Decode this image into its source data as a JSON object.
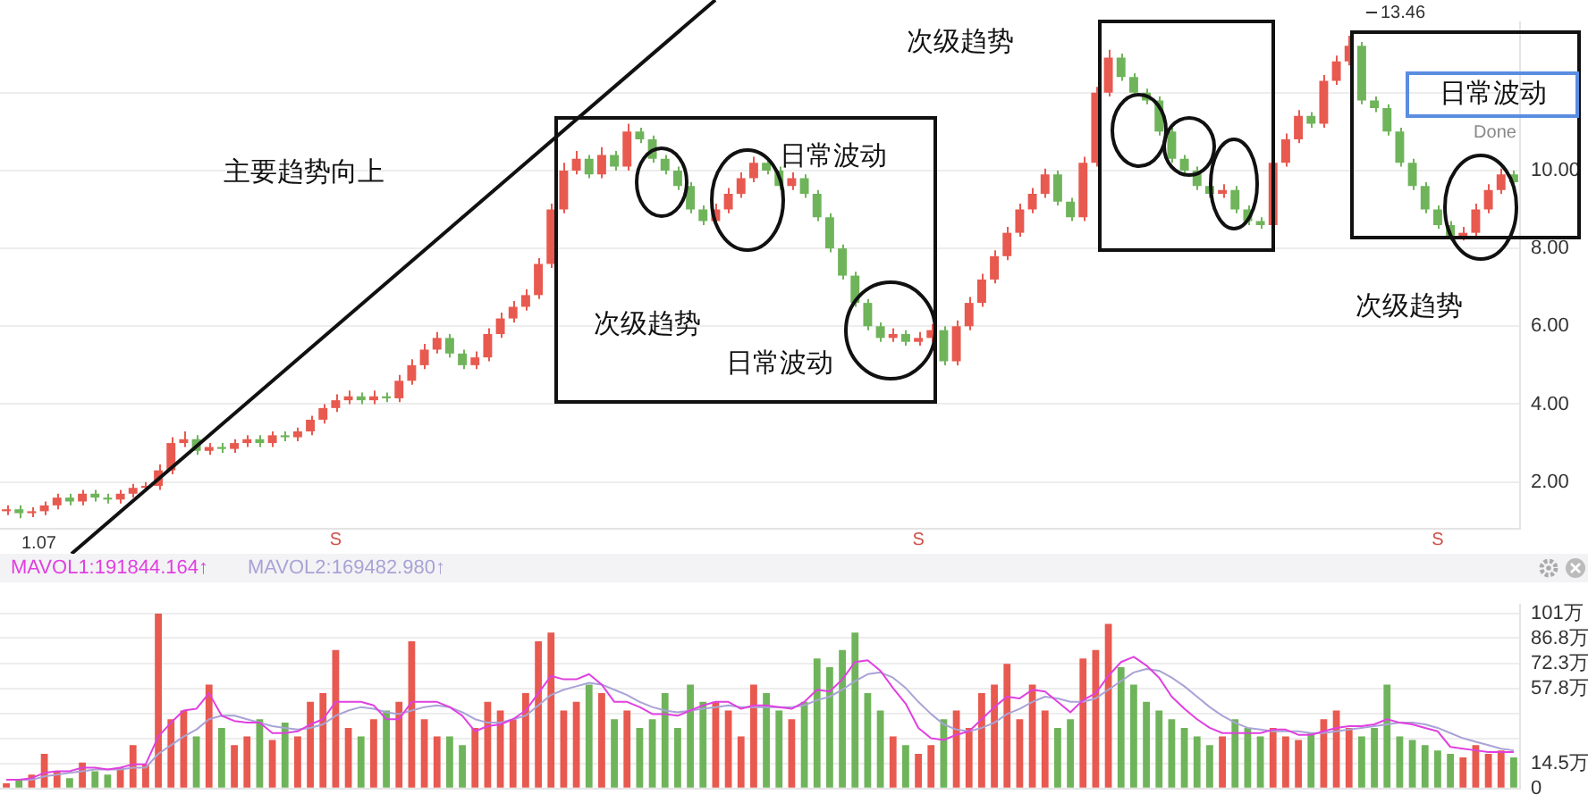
{
  "chart_data": [
    {
      "type": "candlestick",
      "categories": [
        null,
        null,
        null,
        null,
        null,
        null,
        null,
        null,
        null,
        null,
        null,
        null,
        null,
        null,
        null,
        null,
        null,
        null,
        null,
        null,
        null,
        null,
        null,
        null,
        null,
        null,
        "S",
        null,
        null,
        null,
        null,
        null,
        null,
        null,
        null,
        null,
        null,
        null,
        null,
        null,
        null,
        null,
        null,
        null,
        null,
        null,
        null,
        null,
        null,
        null,
        null,
        null,
        null,
        null,
        null,
        null,
        null,
        null,
        null,
        null,
        null,
        null,
        null,
        null,
        null,
        null,
        null,
        null,
        null,
        null,
        null,
        null,
        "S",
        null,
        null,
        null,
        null,
        null,
        null,
        null,
        null,
        null,
        null,
        null,
        null,
        null,
        null,
        null,
        null,
        null,
        null,
        null,
        null,
        null,
        null,
        null,
        null,
        null,
        null,
        null,
        null,
        null,
        null,
        null,
        null,
        null,
        null,
        null,
        null,
        null,
        null,
        null,
        null,
        "S",
        null,
        null,
        null,
        null,
        null,
        null
      ],
      "ohlc": [
        [
          1.25,
          1.4,
          1.15,
          1.3
        ],
        [
          1.3,
          1.4,
          1.07,
          1.2
        ],
        [
          1.2,
          1.35,
          1.1,
          1.25
        ],
        [
          1.25,
          1.5,
          1.15,
          1.4
        ],
        [
          1.4,
          1.7,
          1.3,
          1.6
        ],
        [
          1.6,
          1.7,
          1.4,
          1.5
        ],
        [
          1.5,
          1.8,
          1.4,
          1.7
        ],
        [
          1.7,
          1.8,
          1.5,
          1.6
        ],
        [
          1.6,
          1.7,
          1.45,
          1.55
        ],
        [
          1.55,
          1.8,
          1.45,
          1.7
        ],
        [
          1.7,
          1.95,
          1.6,
          1.85
        ],
        [
          1.85,
          2.0,
          1.75,
          1.9
        ],
        [
          1.9,
          2.45,
          1.8,
          2.3
        ],
        [
          2.3,
          3.15,
          2.2,
          3.0
        ],
        [
          3.0,
          3.3,
          2.9,
          3.1
        ],
        [
          3.1,
          3.2,
          2.7,
          2.8
        ],
        [
          2.8,
          3.0,
          2.7,
          2.9
        ],
        [
          2.9,
          3.0,
          2.75,
          2.85
        ],
        [
          2.85,
          3.1,
          2.75,
          3.0
        ],
        [
          3.0,
          3.2,
          2.9,
          3.1
        ],
        [
          3.1,
          3.2,
          2.9,
          3.0
        ],
        [
          3.0,
          3.3,
          2.9,
          3.2
        ],
        [
          3.2,
          3.3,
          3.05,
          3.15
        ],
        [
          3.15,
          3.4,
          3.05,
          3.3
        ],
        [
          3.3,
          3.7,
          3.2,
          3.6
        ],
        [
          3.6,
          4.0,
          3.5,
          3.9
        ],
        [
          3.9,
          4.25,
          3.8,
          4.1
        ],
        [
          4.1,
          4.35,
          4.0,
          4.2
        ],
        [
          4.2,
          4.3,
          4.0,
          4.1
        ],
        [
          4.1,
          4.35,
          4.0,
          4.2
        ],
        [
          4.2,
          4.3,
          4.05,
          4.15
        ],
        [
          4.15,
          4.75,
          4.05,
          4.6
        ],
        [
          4.6,
          5.15,
          4.5,
          5.0
        ],
        [
          5.0,
          5.55,
          4.9,
          5.4
        ],
        [
          5.4,
          5.85,
          5.3,
          5.7
        ],
        [
          5.7,
          5.8,
          5.2,
          5.3
        ],
        [
          5.3,
          5.4,
          4.9,
          5.0
        ],
        [
          5.0,
          5.35,
          4.9,
          5.2
        ],
        [
          5.2,
          5.95,
          5.1,
          5.8
        ],
        [
          5.8,
          6.35,
          5.7,
          6.2
        ],
        [
          6.2,
          6.65,
          6.1,
          6.5
        ],
        [
          6.5,
          6.95,
          6.4,
          6.8
        ],
        [
          6.8,
          7.75,
          6.7,
          7.6
        ],
        [
          7.6,
          9.15,
          7.5,
          9.0
        ],
        [
          9.0,
          10.2,
          8.9,
          10.0
        ],
        [
          10.0,
          10.5,
          9.9,
          10.3
        ],
        [
          10.3,
          10.4,
          9.8,
          9.9
        ],
        [
          9.9,
          10.6,
          9.8,
          10.4
        ],
        [
          10.4,
          10.5,
          10.0,
          10.1
        ],
        [
          10.1,
          11.2,
          10.0,
          11.0
        ],
        [
          11.0,
          11.1,
          10.7,
          10.8
        ],
        [
          10.8,
          10.9,
          10.2,
          10.3
        ],
        [
          10.3,
          10.4,
          9.9,
          10.0
        ],
        [
          10.0,
          10.1,
          9.5,
          9.6
        ],
        [
          9.6,
          9.7,
          8.9,
          9.0
        ],
        [
          9.0,
          9.1,
          8.6,
          8.7
        ],
        [
          8.7,
          9.15,
          8.6,
          9.0
        ],
        [
          9.0,
          9.55,
          8.9,
          9.4
        ],
        [
          9.4,
          9.95,
          9.3,
          9.8
        ],
        [
          9.8,
          10.35,
          9.7,
          10.2
        ],
        [
          10.2,
          10.3,
          9.9,
          10.0
        ],
        [
          10.0,
          10.1,
          9.5,
          9.6
        ],
        [
          9.6,
          9.95,
          9.5,
          9.8
        ],
        [
          9.8,
          9.9,
          9.3,
          9.4
        ],
        [
          9.4,
          9.5,
          8.7,
          8.8
        ],
        [
          8.8,
          8.9,
          7.9,
          8.0
        ],
        [
          8.0,
          8.1,
          7.2,
          7.3
        ],
        [
          7.3,
          7.4,
          6.5,
          6.6
        ],
        [
          6.6,
          6.7,
          5.9,
          6.0
        ],
        [
          6.0,
          6.1,
          5.6,
          5.7
        ],
        [
          5.7,
          5.95,
          5.6,
          5.8
        ],
        [
          5.8,
          5.9,
          5.5,
          5.6
        ],
        [
          5.6,
          5.85,
          5.5,
          5.7
        ],
        [
          5.7,
          6.05,
          5.6,
          5.9
        ],
        [
          5.9,
          6.0,
          5.0,
          5.1
        ],
        [
          5.1,
          6.15,
          5.0,
          6.0
        ],
        [
          6.0,
          6.75,
          5.9,
          6.6
        ],
        [
          6.6,
          7.35,
          6.5,
          7.2
        ],
        [
          7.2,
          7.95,
          7.1,
          7.8
        ],
        [
          7.8,
          8.55,
          7.7,
          8.4
        ],
        [
          8.4,
          9.15,
          8.3,
          9.0
        ],
        [
          9.0,
          9.55,
          8.9,
          9.4
        ],
        [
          9.4,
          10.05,
          9.3,
          9.9
        ],
        [
          9.9,
          10.0,
          9.1,
          9.2
        ],
        [
          9.2,
          9.3,
          8.7,
          8.8
        ],
        [
          8.8,
          10.35,
          8.7,
          10.2
        ],
        [
          10.2,
          12.15,
          10.1,
          12.0
        ],
        [
          12.0,
          13.1,
          11.9,
          12.9
        ],
        [
          12.9,
          13.0,
          12.3,
          12.4
        ],
        [
          12.4,
          12.5,
          11.9,
          12.0
        ],
        [
          12.0,
          12.1,
          11.7,
          11.8
        ],
        [
          11.8,
          11.9,
          10.9,
          11.0
        ],
        [
          11.0,
          11.1,
          10.2,
          10.3
        ],
        [
          10.3,
          10.4,
          9.9,
          10.0
        ],
        [
          10.0,
          10.1,
          9.5,
          9.6
        ],
        [
          9.6,
          9.7,
          9.3,
          9.4
        ],
        [
          9.4,
          9.65,
          9.3,
          9.5
        ],
        [
          9.5,
          9.6,
          8.9,
          9.0
        ],
        [
          9.0,
          9.1,
          8.6,
          8.7
        ],
        [
          8.7,
          8.8,
          8.5,
          8.6
        ],
        [
          8.6,
          10.35,
          8.5,
          10.2
        ],
        [
          10.2,
          10.95,
          10.1,
          10.8
        ],
        [
          10.8,
          11.55,
          10.7,
          11.4
        ],
        [
          11.4,
          11.5,
          11.1,
          11.2
        ],
        [
          11.2,
          12.45,
          11.1,
          12.3
        ],
        [
          12.3,
          12.95,
          12.2,
          12.8
        ],
        [
          12.8,
          13.46,
          12.7,
          13.2
        ],
        [
          13.2,
          13.3,
          11.7,
          11.8
        ],
        [
          11.8,
          11.9,
          11.5,
          11.6
        ],
        [
          11.6,
          11.7,
          10.9,
          11.0
        ],
        [
          11.0,
          11.1,
          10.1,
          10.2
        ],
        [
          10.2,
          10.3,
          9.5,
          9.6
        ],
        [
          9.6,
          9.7,
          8.9,
          9.0
        ],
        [
          9.0,
          9.1,
          8.5,
          8.6
        ],
        [
          8.6,
          8.7,
          8.2,
          8.3
        ],
        [
          8.3,
          8.55,
          8.2,
          8.4
        ],
        [
          8.4,
          9.15,
          8.3,
          9.0
        ],
        [
          9.0,
          9.65,
          8.9,
          9.5
        ],
        [
          9.5,
          10.05,
          9.4,
          9.9
        ],
        [
          9.9,
          10.0,
          9.6,
          9.7
        ]
      ],
      "ylim": [
        0.8,
        13.8
      ],
      "yticks": [
        {
          "value": 2,
          "label": "2.00"
        },
        {
          "value": 4,
          "label": "4.00"
        },
        {
          "value": 6,
          "label": "6.00"
        },
        {
          "value": 8,
          "label": "8.00"
        },
        {
          "value": 10,
          "label": "10.00"
        },
        {
          "value": 12,
          "label": null
        }
      ],
      "grid": "y",
      "annotations": [
        "主要趋势向上",
        "次级趋势",
        "日常波动",
        "日常波动",
        "次级趋势",
        "日常波动",
        "Done",
        "次级趋势",
        "13.46",
        "1.07"
      ]
    },
    {
      "type": "bar",
      "categories": [
        null,
        null,
        null,
        null,
        null,
        null,
        null,
        null,
        null,
        null,
        null,
        null,
        null,
        null,
        null,
        null,
        null,
        null,
        null,
        null,
        null,
        null,
        null,
        null,
        null,
        null,
        null,
        null,
        null,
        null,
        null,
        null,
        null,
        null,
        null,
        null,
        null,
        null,
        null,
        null,
        null,
        null,
        null,
        null,
        null,
        null,
        null,
        null,
        null,
        null,
        null,
        null,
        null,
        null,
        null,
        null,
        null,
        null,
        null,
        null,
        null,
        null,
        null,
        null,
        null,
        null,
        null,
        null,
        null,
        null,
        null,
        null,
        null,
        null,
        null,
        null,
        null,
        null,
        null,
        null,
        null,
        null,
        null,
        null,
        null,
        null,
        null,
        null,
        null,
        null,
        null,
        null,
        null,
        null,
        null,
        null,
        null,
        null,
        null,
        null,
        null,
        null,
        null,
        null,
        null,
        null,
        null,
        null,
        null,
        null,
        null,
        null,
        null,
        null,
        null,
        null,
        null,
        null,
        null,
        null
      ],
      "series": [
        {
          "type": "bar",
          "values": [
            3,
            5,
            8,
            20,
            10,
            6,
            15,
            10,
            8,
            12,
            25,
            14,
            101,
            40,
            45,
            30,
            60,
            35,
            25,
            30,
            40,
            28,
            38,
            30,
            50,
            55,
            80,
            35,
            30,
            40,
            45,
            50,
            85,
            40,
            30,
            30,
            25,
            35,
            50,
            45,
            40,
            55,
            85,
            90,
            45,
            50,
            60,
            55,
            40,
            45,
            35,
            40,
            55,
            35,
            60,
            50,
            50,
            45,
            30,
            60,
            55,
            45,
            40,
            50,
            75,
            70,
            80,
            90,
            55,
            45,
            30,
            25,
            20,
            25,
            40,
            45,
            35,
            55,
            60,
            72,
            40,
            60,
            45,
            35,
            40,
            75,
            80,
            95,
            70,
            60,
            50,
            45,
            40,
            35,
            30,
            25,
            30,
            40,
            35,
            30,
            35,
            30,
            28,
            32,
            40,
            45,
            35,
            30,
            35,
            60,
            30,
            28,
            25,
            22,
            20,
            18,
            25,
            20,
            22,
            18
          ],
          "colors": [
            "#e8594f",
            "#6fb45a",
            "#e8594f",
            "#e8594f",
            "#e8594f",
            "#6fb45a",
            "#e8594f",
            "#6fb45a",
            "#6fb45a",
            "#e8594f",
            "#e8594f",
            "#e8594f",
            "#e8594f",
            "#e8594f",
            "#e8594f",
            "#6fb45a",
            "#e8594f",
            "#6fb45a",
            "#e8594f",
            "#e8594f",
            "#6fb45a",
            "#e8594f",
            "#6fb45a",
            "#e8594f",
            "#e8594f",
            "#e8594f",
            "#e8594f",
            "#e8594f",
            "#6fb45a",
            "#e8594f",
            "#6fb45a",
            "#e8594f",
            "#e8594f",
            "#e8594f",
            "#e8594f",
            "#6fb45a",
            "#6fb45a",
            "#e8594f",
            "#e8594f",
            "#e8594f",
            "#e8594f",
            "#e8594f",
            "#e8594f",
            "#e8594f",
            "#e8594f",
            "#e8594f",
            "#6fb45a",
            "#e8594f",
            "#6fb45a",
            "#e8594f",
            "#6fb45a",
            "#6fb45a",
            "#6fb45a",
            "#6fb45a",
            "#6fb45a",
            "#6fb45a",
            "#e8594f",
            "#e8594f",
            "#e8594f",
            "#e8594f",
            "#6fb45a",
            "#6fb45a",
            "#e8594f",
            "#6fb45a",
            "#6fb45a",
            "#6fb45a",
            "#6fb45a",
            "#6fb45a",
            "#6fb45a",
            "#6fb45a",
            "#e8594f",
            "#6fb45a",
            "#e8594f",
            "#e8594f",
            "#6fb45a",
            "#e8594f",
            "#e8594f",
            "#e8594f",
            "#e8594f",
            "#e8594f",
            "#e8594f",
            "#e8594f",
            "#e8594f",
            "#6fb45a",
            "#6fb45a",
            "#e8594f",
            "#e8594f",
            "#e8594f",
            "#6fb45a",
            "#6fb45a",
            "#6fb45a",
            "#6fb45a",
            "#6fb45a",
            "#6fb45a",
            "#6fb45a",
            "#6fb45a",
            "#e8594f",
            "#6fb45a",
            "#6fb45a",
            "#6fb45a",
            "#e8594f",
            "#e8594f",
            "#e8594f",
            "#6fb45a",
            "#e8594f",
            "#e8594f",
            "#e8594f",
            "#6fb45a",
            "#6fb45a",
            "#6fb45a",
            "#6fb45a",
            "#6fb45a",
            "#6fb45a",
            "#6fb45a",
            "#6fb45a",
            "#e8594f",
            "#e8594f",
            "#e8594f",
            "#e8594f",
            "#6fb45a"
          ]
        },
        {
          "type": "line",
          "name": "MAVOL1:191844.164↑",
          "color": "#e040e0",
          "values": [
            5,
            5,
            6,
            9,
            10,
            10,
            12,
            12,
            11,
            12,
            14,
            14,
            30,
            38,
            45,
            46,
            55,
            42,
            39,
            38,
            38,
            32,
            32,
            33,
            37,
            40,
            50,
            50,
            50,
            48,
            40,
            40,
            50,
            50,
            50,
            47,
            42,
            33,
            36,
            37,
            40,
            45,
            55,
            65,
            63,
            63,
            66,
            60,
            50,
            50,
            47,
            43,
            43,
            42,
            45,
            48,
            50,
            50,
            46,
            48,
            48,
            47,
            46,
            50,
            57,
            56,
            63,
            73,
            74,
            68,
            58,
            49,
            35,
            29,
            28,
            31,
            33,
            40,
            47,
            53,
            52,
            57,
            56,
            50,
            44,
            51,
            55,
            65,
            73,
            76,
            71,
            64,
            53,
            46,
            40,
            35,
            32,
            32,
            32,
            32,
            34,
            34,
            31,
            31,
            33,
            35,
            36,
            36,
            37,
            40,
            38,
            37,
            35,
            33,
            24,
            23,
            22,
            21,
            21,
            21
          ]
        },
        {
          "type": "line",
          "name": "MAVOL2:169482.980↑",
          "color": "#a9a3d6",
          "values": [
            5,
            5,
            5,
            7,
            8,
            9,
            10,
            11,
            11,
            11,
            12,
            12,
            20,
            25,
            30,
            34,
            40,
            42,
            42,
            40,
            38,
            36,
            35,
            34,
            35,
            37,
            42,
            45,
            47,
            46,
            44,
            43,
            45,
            47,
            48,
            47,
            44,
            40,
            38,
            38,
            40,
            42,
            48,
            54,
            57,
            59,
            61,
            60,
            57,
            54,
            50,
            47,
            45,
            44,
            45,
            46,
            47,
            48,
            47,
            47,
            47,
            47,
            47,
            48,
            51,
            53,
            57,
            62,
            66,
            67,
            64,
            58,
            50,
            43,
            37,
            34,
            33,
            35,
            38,
            43,
            46,
            50,
            53,
            52,
            50,
            50,
            52,
            57,
            62,
            67,
            69,
            68,
            64,
            59,
            53,
            47,
            42,
            38,
            35,
            34,
            33,
            33,
            33,
            32,
            32,
            33,
            34,
            35,
            36,
            37,
            38,
            38,
            37,
            35,
            32,
            29,
            27,
            25,
            23,
            22
          ]
        }
      ],
      "ylim": [
        0,
        106
      ],
      "yticks": [
        {
          "value": 0,
          "label": "0"
        },
        {
          "value": 14.5,
          "label": "14.5万"
        },
        {
          "value": 28.9,
          "label": null
        },
        {
          "value": 43.4,
          "label": null
        },
        {
          "value": 57.8,
          "label": "57.8万"
        },
        {
          "value": 72.3,
          "label": "72.3万"
        },
        {
          "value": 86.8,
          "label": "86.8万"
        },
        {
          "value": 101,
          "label": "101万"
        }
      ],
      "grid": "y",
      "legend": "top left",
      "tick_labels": "y"
    }
  ]
}
